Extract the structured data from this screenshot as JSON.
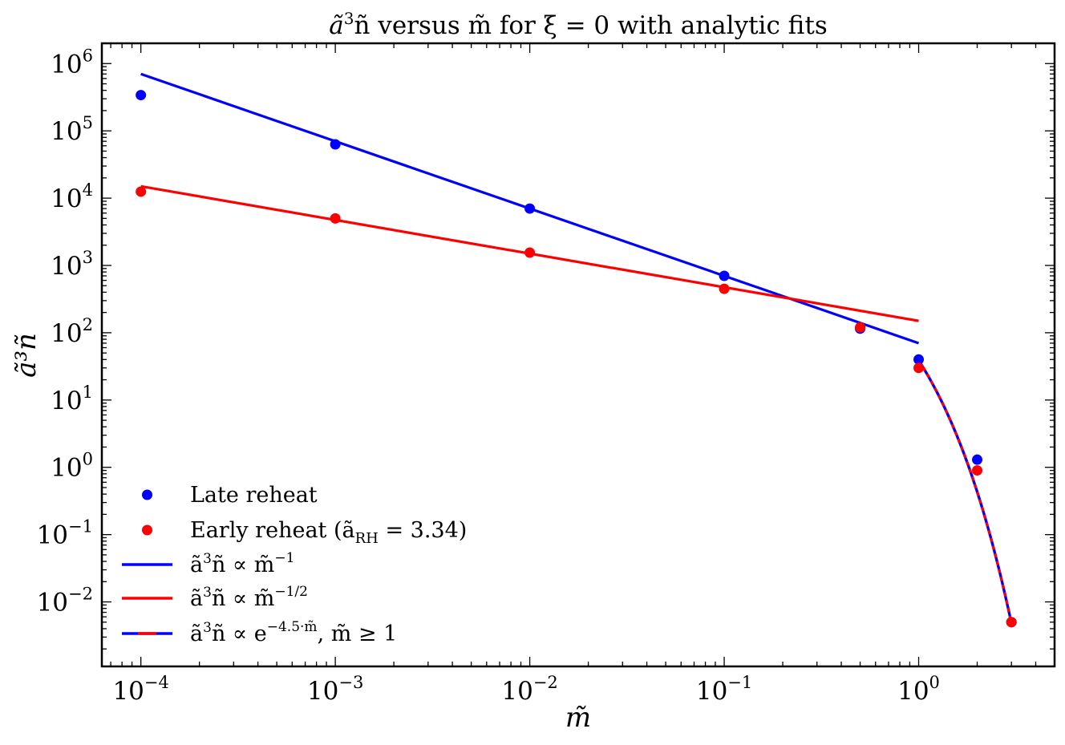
{
  "chart_data": {
    "type": "scatter",
    "title": "ã³ñ versus m̃ for ξ = 0 with analytic fits",
    "title_parts": {
      "prefix": "ã",
      "prefix_sup": "3",
      "middle": "ñ versus m̃ for ξ = 0 with analytic fits"
    },
    "xlabel": "m̃",
    "ylabel": "ã³ñ",
    "xscale": "log",
    "yscale": "log",
    "xlim": [
      6.3e-05,
      5.0
    ],
    "ylim": [
      0.0011,
      2000000
    ],
    "x_ticks": [
      {
        "value": 0.0001,
        "base": "10",
        "exp": "−4"
      },
      {
        "value": 0.001,
        "base": "10",
        "exp": "−3"
      },
      {
        "value": 0.01,
        "base": "10",
        "exp": "−2"
      },
      {
        "value": 0.1,
        "base": "10",
        "exp": "−1"
      },
      {
        "value": 1,
        "base": "10",
        "exp": "0"
      }
    ],
    "y_ticks": [
      {
        "value": 0.01,
        "base": "10",
        "exp": "−2"
      },
      {
        "value": 0.1,
        "base": "10",
        "exp": "−1"
      },
      {
        "value": 1,
        "base": "10",
        "exp": "0"
      },
      {
        "value": 10,
        "base": "10",
        "exp": "1"
      },
      {
        "value": 100,
        "base": "10",
        "exp": "2"
      },
      {
        "value": 1000,
        "base": "10",
        "exp": "3"
      },
      {
        "value": 10000,
        "base": "10",
        "exp": "4"
      },
      {
        "value": 100000,
        "base": "10",
        "exp": "5"
      },
      {
        "value": 1000000,
        "base": "10",
        "exp": "6"
      }
    ],
    "series": [
      {
        "name": "Late reheat",
        "kind": "points",
        "color": "#0000ff",
        "x": [
          0.0001,
          0.001,
          0.01,
          0.1,
          0.5,
          1.0,
          2.0,
          3.0
        ],
        "y": [
          340000,
          63000,
          7000,
          700,
          115,
          40,
          1.3,
          0.005
        ]
      },
      {
        "name": "Early reheat (ã_RH = 3.34)",
        "kind": "points",
        "color": "#ff0000",
        "x": [
          0.0001,
          0.001,
          0.01,
          0.1,
          0.5,
          1.0,
          2.0,
          3.0
        ],
        "y": [
          12500,
          5000,
          1550,
          450,
          120,
          30,
          0.9,
          0.005
        ]
      },
      {
        "name": "ã³ñ ∝ m̃⁻¹",
        "kind": "power",
        "color": "#0000ff",
        "coef": 70,
        "exponent": -1,
        "x_range": [
          0.0001,
          1.0
        ]
      },
      {
        "name": "ã³ñ ∝ m̃^(−1/2)",
        "kind": "power",
        "color": "#ff0000",
        "coef": 150,
        "exponent": -0.5,
        "x_range": [
          0.0001,
          1.0
        ]
      },
      {
        "name": "ã³ñ ∝ e^(−4.5·m̃), m̃ ≥ 1",
        "kind": "exp",
        "color": "#0000ff",
        "dash_color": "#ff0000",
        "amplitude": 3500,
        "rate": -4.5,
        "x_range": [
          1.0,
          3.0
        ]
      }
    ],
    "legend": {
      "location": "lower-left",
      "entries": [
        {
          "marker": "dot",
          "color": "#0000ff",
          "text": "Late reheat"
        },
        {
          "marker": "dot",
          "color": "#ff0000",
          "text_main": "Early reheat (ã",
          "text_sub": "RH",
          "text_tail": " = 3.34)"
        },
        {
          "marker": "line",
          "color": "#0000ff",
          "text_main": "ã",
          "text_sup1": "3",
          "text_mid": "ñ ∝ m̃",
          "text_sup2": "−1"
        },
        {
          "marker": "line",
          "color": "#ff0000",
          "text_main": "ã",
          "text_sup1": "3",
          "text_mid": "ñ ∝ m̃",
          "text_sup2": "−1/2"
        },
        {
          "marker": "dashline",
          "color": "#0000ff",
          "dash_color": "#ff0000",
          "text_main": "ã",
          "text_sup1": "3",
          "text_mid": "ñ ∝ e",
          "text_sup2": "−4.5·m̃",
          "text_tail": ", m̃ ≥ 1"
        }
      ]
    }
  }
}
